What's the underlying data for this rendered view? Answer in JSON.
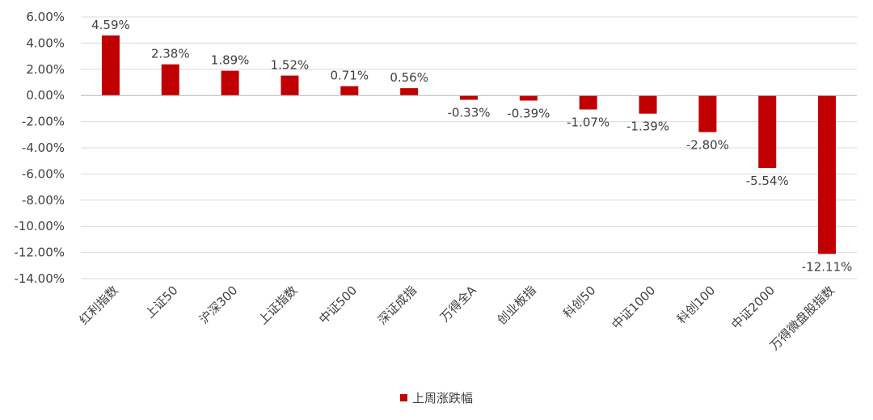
{
  "chart_data": {
    "type": "bar",
    "title": "",
    "xlabel": "",
    "ylabel": "",
    "ylim": [
      -14,
      6
    ],
    "ytick_step": 2,
    "ytick_format": "percent_2dp",
    "grid": true,
    "legend_position": "bottom",
    "categories": [
      "红利指数",
      "上证50",
      "沪深300",
      "上证指数",
      "中证500",
      "深证成指",
      "万得全A",
      "创业板指",
      "科创50",
      "中证1000",
      "科创100",
      "中证2000",
      "万得微盘股指数"
    ],
    "series": [
      {
        "name": "上周涨跌幅",
        "color": "#C00000",
        "values": [
          4.59,
          2.38,
          1.89,
          1.52,
          0.71,
          0.56,
          -0.33,
          -0.39,
          -1.07,
          -1.39,
          -2.8,
          -5.54,
          -12.11
        ],
        "labels": [
          "4.59%",
          "2.38%",
          "1.89%",
          "1.52%",
          "0.71%",
          "0.56%",
          "-0.33%",
          "-0.39%",
          "-1.07%",
          "-1.39%",
          "-2.80%",
          "-5.54%",
          "-12.11%"
        ]
      }
    ]
  },
  "legend": {
    "label": "上周涨跌幅",
    "color": "#C00000"
  }
}
